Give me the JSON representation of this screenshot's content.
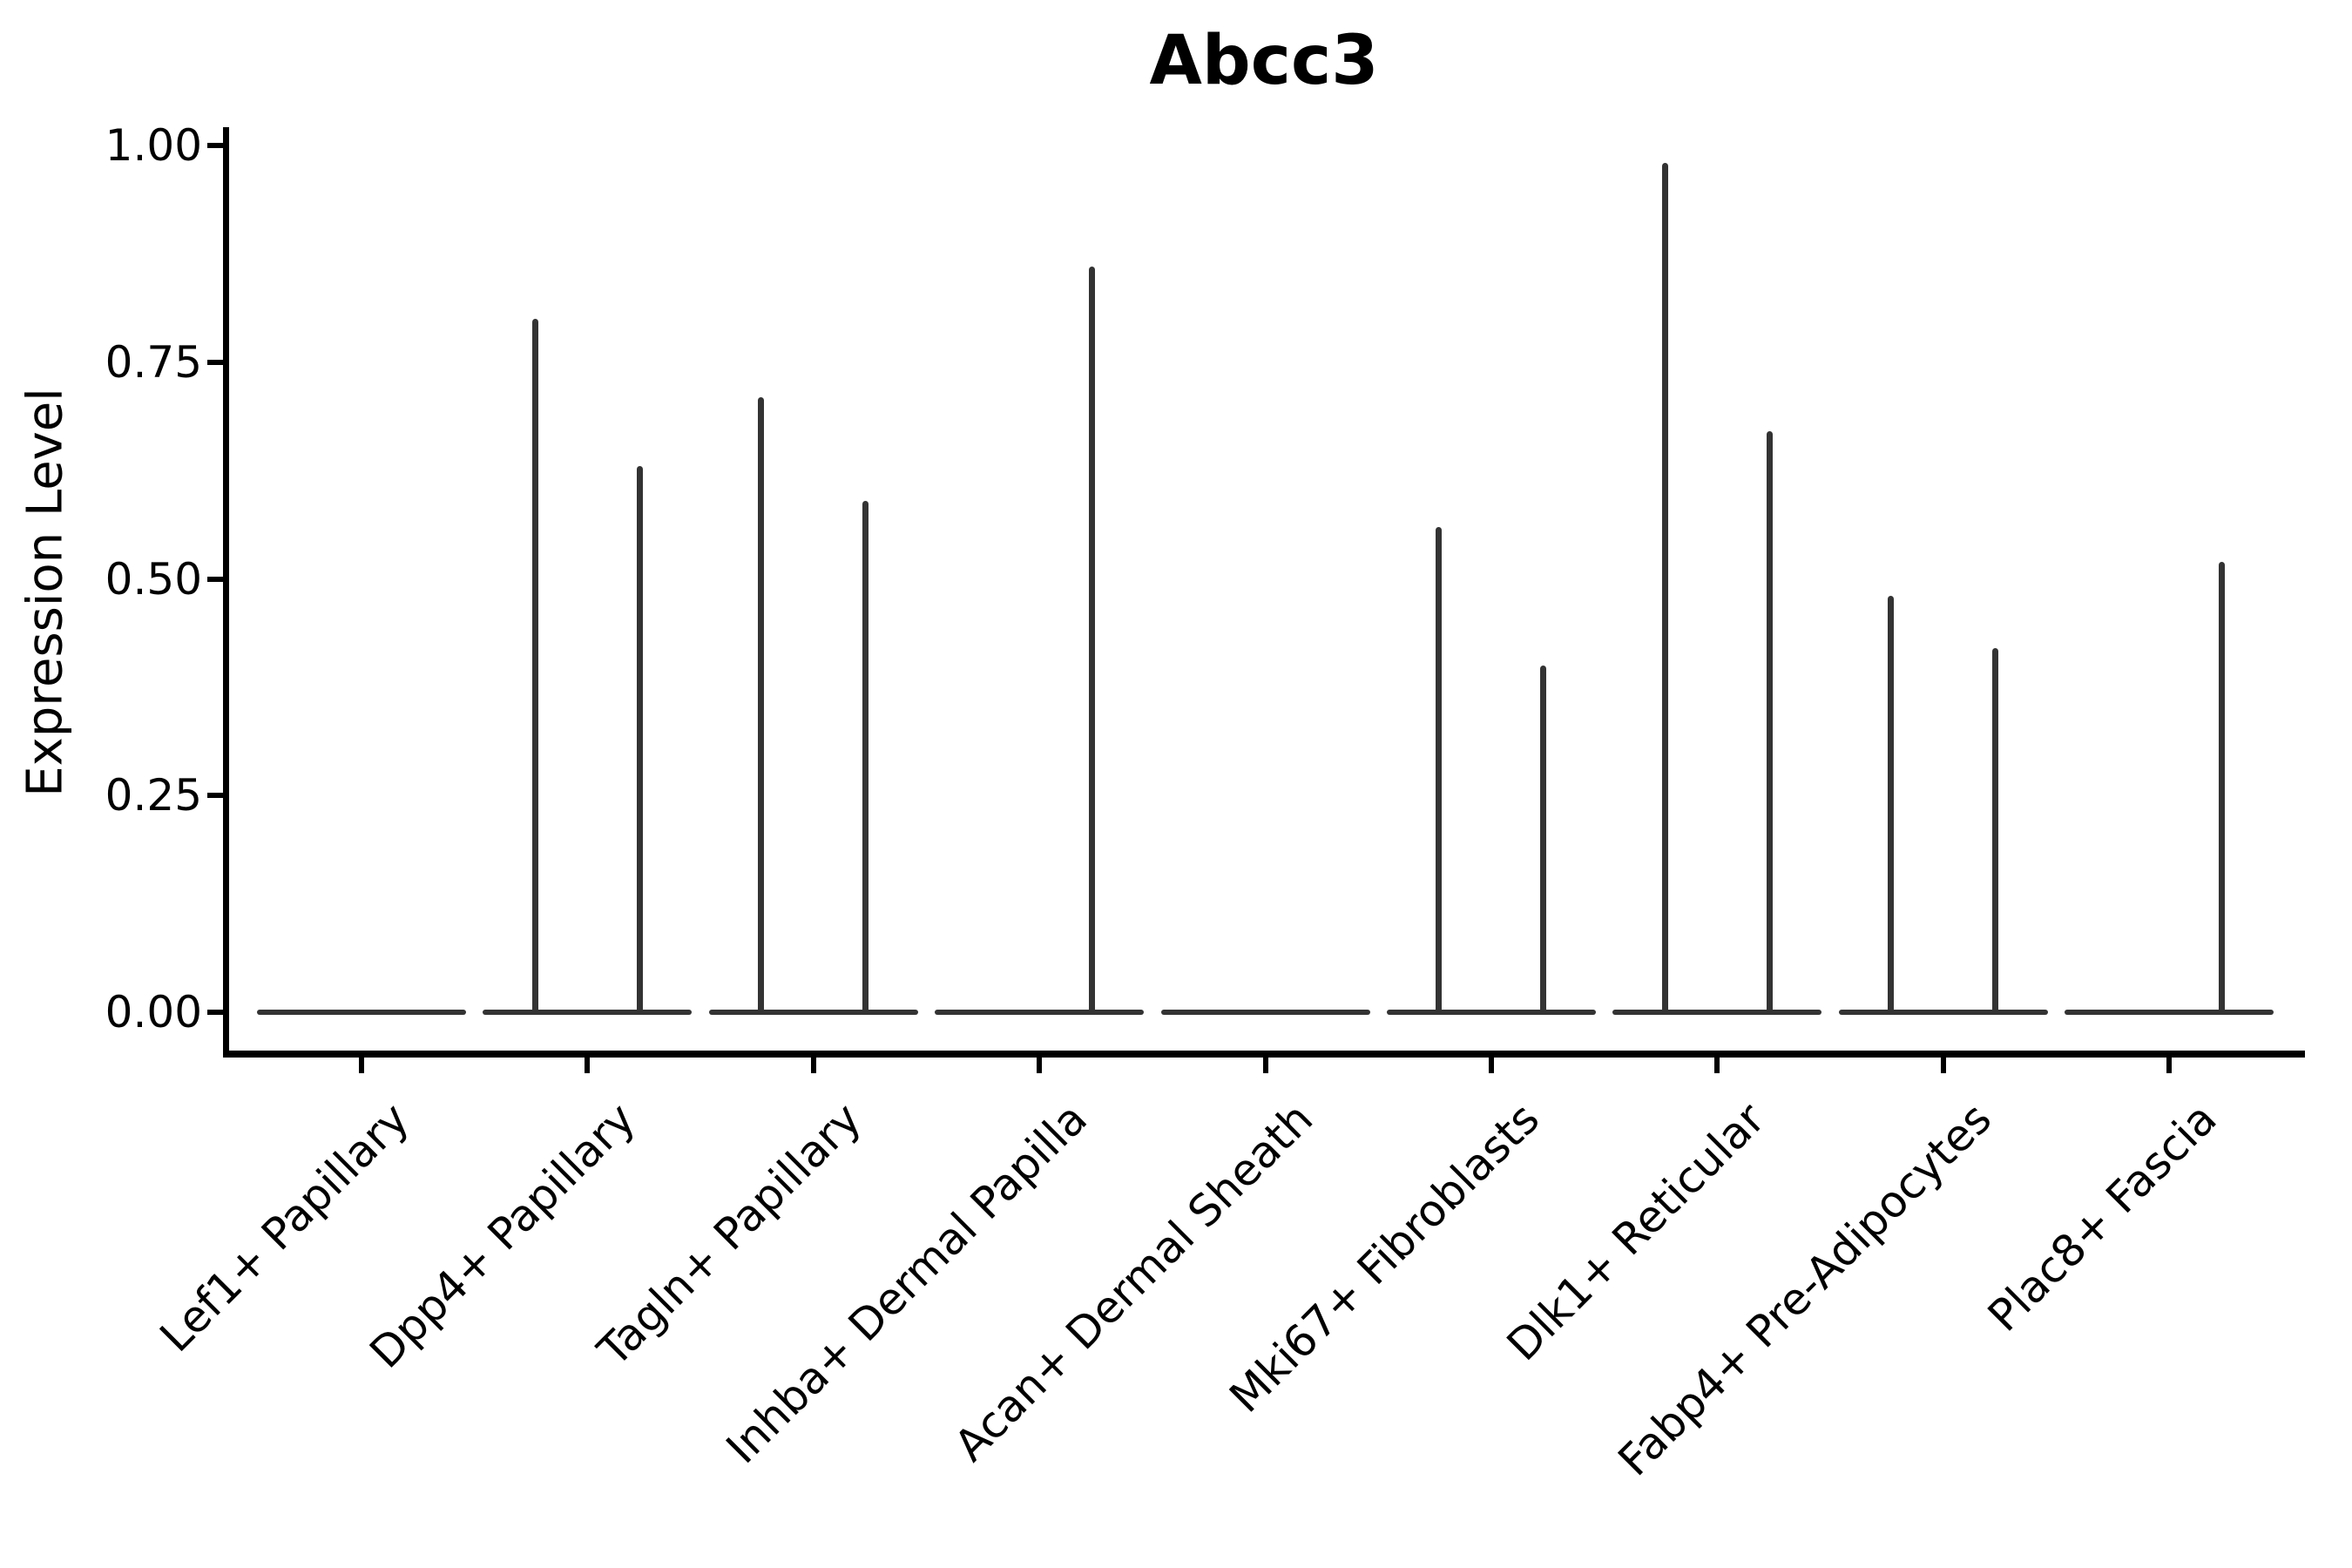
{
  "title": "Abcc3",
  "ylabel": "Expression Level",
  "chart_data": {
    "type": "violin",
    "title": "Abcc3",
    "xlabel": "",
    "ylabel": "Expression Level",
    "ylim": [
      0,
      1.0
    ],
    "grid": false,
    "legend_position": "none",
    "ytick_labels": [
      "0.00",
      "0.25",
      "0.50",
      "0.75",
      "1.00"
    ],
    "ytick_values": [
      0,
      0.25,
      0.5,
      0.75,
      1.0
    ],
    "categories": [
      "Lef1+ Papillary",
      "Dpp4+ Papillary",
      "Tagln+ Papillary",
      "Inhba+ Dermal Papilla",
      "Acan+ Dermal Sheath",
      "Mki67+ Fibroblasts",
      "Dlk1+ Reticular",
      "Fabp4+ Pre-Adipocytes",
      "Plac8+ Fascia"
    ],
    "series": [
      {
        "name": "left-violin-max-expression",
        "values": [
          0,
          0.8,
          0.71,
          0,
          0,
          0.56,
          0.98,
          0.48,
          0
        ]
      },
      {
        "name": "right-violin-max-expression",
        "values": [
          0,
          0.63,
          0.59,
          0.86,
          0,
          0.4,
          0.67,
          0.42,
          0.52
        ]
      }
    ],
    "colors": {
      "violin_line": "#333333",
      "axis": "#000000"
    }
  }
}
